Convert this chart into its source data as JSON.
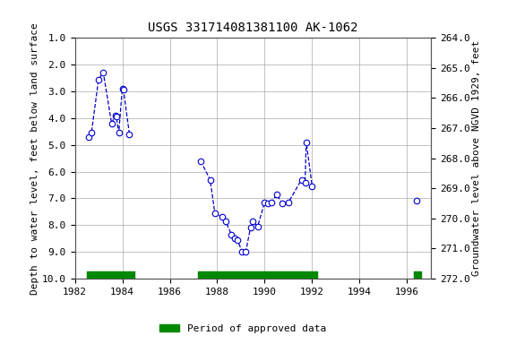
{
  "title": "USGS 331714081381100 AK-1062",
  "ylabel_left": "Depth to water level, feet below land surface",
  "ylabel_right": "Groundwater level above NGVD 1929, feet",
  "ylim_left": [
    1.0,
    10.0
  ],
  "ylim_right": [
    272.0,
    264.0
  ],
  "xlim": [
    1982,
    1997
  ],
  "yticks_left": [
    1.0,
    2.0,
    3.0,
    4.0,
    5.0,
    6.0,
    7.0,
    8.0,
    9.0,
    10.0
  ],
  "yticks_right": [
    272.0,
    271.0,
    270.0,
    269.0,
    268.0,
    267.0,
    266.0,
    265.0,
    264.0
  ],
  "xticks": [
    1982,
    1984,
    1986,
    1988,
    1990,
    1992,
    1994,
    1996
  ],
  "segments": [
    {
      "x": [
        1982.6,
        1982.7,
        1983.0,
        1983.2,
        1983.55,
        1983.7,
        1983.75,
        1983.85,
        1984.0,
        1984.05,
        1984.3
      ],
      "y": [
        4.7,
        4.55,
        2.55,
        2.3,
        4.2,
        3.9,
        3.95,
        4.55,
        2.9,
        2.95,
        4.6
      ]
    },
    {
      "x": [
        1987.3,
        1987.7,
        1987.9,
        1988.2,
        1988.35,
        1988.6,
        1988.75,
        1988.85,
        1989.05,
        1989.2,
        1989.4,
        1989.5,
        1989.7,
        1990.0,
        1990.15,
        1990.3,
        1990.5,
        1990.75,
        1991.0,
        1991.55,
        1991.7,
        1991.75,
        1992.0
      ],
      "y": [
        5.6,
        6.3,
        7.55,
        7.7,
        7.85,
        8.35,
        8.5,
        8.55,
        9.0,
        9.0,
        8.1,
        7.85,
        8.05,
        7.15,
        7.2,
        7.15,
        6.85,
        7.2,
        7.15,
        6.3,
        6.4,
        4.9,
        6.55
      ]
    },
    {
      "x": [
        1996.4
      ],
      "y": [
        7.1
      ]
    }
  ],
  "line_color": "#0000CC",
  "marker_color": "#0000CC",
  "marker_facecolor": "#ffffff",
  "bg_color": "#ffffff",
  "plot_bg_color": "#ffffff",
  "grid_color": "#aaaaaa",
  "approved_bars": [
    {
      "x_start": 1982.5,
      "x_end": 1984.5
    },
    {
      "x_start": 1987.2,
      "x_end": 1992.2
    },
    {
      "x_start": 1996.3,
      "x_end": 1996.6
    }
  ],
  "approved_bar_color": "#008800",
  "approved_bar_height": 0.28,
  "legend_label": "Period of approved data",
  "title_fontsize": 10,
  "axis_label_fontsize": 8,
  "tick_fontsize": 8
}
